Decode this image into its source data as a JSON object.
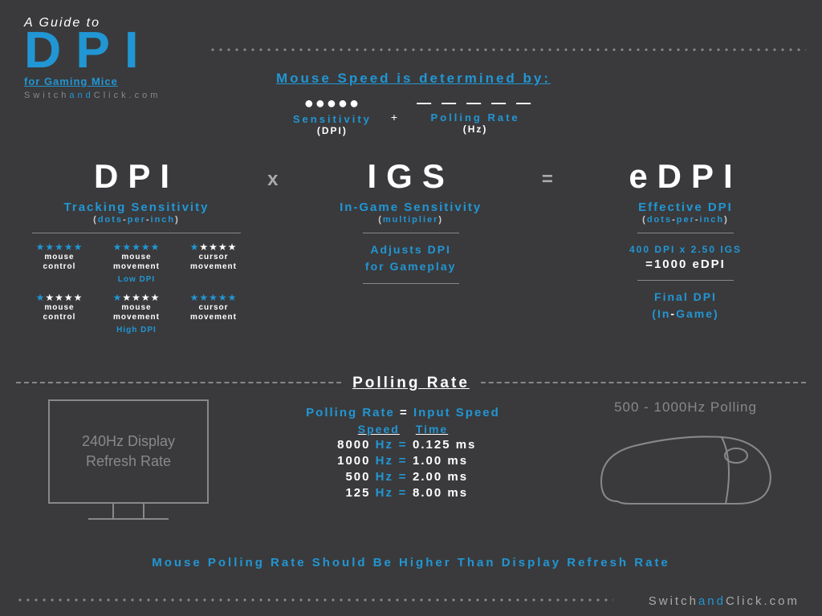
{
  "colors": {
    "background": "#3a3a3c",
    "accent": "#2196d4",
    "text": "#ffffff",
    "muted": "#888888",
    "light": "#aaaaaa"
  },
  "header": {
    "pretitle": "A Guide to",
    "title": "DPI",
    "subtitle": "for Gaming Mice",
    "site_prefix": "Switch",
    "site_mid": "and",
    "site_suffix": "Click.com"
  },
  "speed": {
    "heading": "Mouse Speed is determined by:",
    "factor1_label": "Sensitivity",
    "factor1_sub": "(DPI)",
    "plus": "+",
    "factor2_label": "Polling Rate",
    "factor2_sub": "(Hz)"
  },
  "formula": {
    "dpi": {
      "title": "DPI",
      "sub1": "Tracking Sensitivity",
      "sub2_open": "(",
      "sub2_d": "dots",
      "sub2_p": "per",
      "sub2_i": "inch",
      "sub2_close": ")",
      "grid": {
        "low_items": [
          {
            "stars_on": 5,
            "stars_off": 0,
            "label1": "mouse",
            "label2": "control"
          },
          {
            "stars_on": 5,
            "stars_off": 0,
            "label1": "mouse",
            "label2": "movement"
          },
          {
            "stars_on": 1,
            "stars_off": 4,
            "label1": "cursor",
            "label2": "movement"
          }
        ],
        "low_tier": "Low DPI",
        "high_items": [
          {
            "stars_on": 1,
            "stars_off": 4,
            "label1": "mouse",
            "label2": "control"
          },
          {
            "stars_on": 1,
            "stars_off": 4,
            "label1": "mouse",
            "label2": "movement"
          },
          {
            "stars_on": 5,
            "stars_off": 0,
            "label1": "cursor",
            "label2": "movement"
          }
        ],
        "high_tier": "High DPI"
      }
    },
    "op1": "x",
    "igs": {
      "title": "IGS",
      "sub1": "In-Game Sensitivity",
      "sub2_open": "(",
      "sub2_text": "multiplier",
      "sub2_close": ")",
      "desc1": "Adjusts DPI",
      "desc2": "for Gameplay"
    },
    "op2": "=",
    "edpi": {
      "title": "eDPI",
      "sub1": "Effective DPI",
      "sub2_open": "(",
      "sub2_d": "dots",
      "sub2_p": "per",
      "sub2_i": "inch",
      "sub2_close": ")",
      "calc_line": "400 DPI x 2.50 IGS",
      "result_eq": "=",
      "result_val": "1000 eDPI",
      "final1": "Final DPI",
      "final2_open": "(",
      "final2_in": "In",
      "final2_game": "Game",
      "final2_close": ")"
    }
  },
  "polling": {
    "section_label": "Polling Rate",
    "monitor_text1": "240Hz Display",
    "monitor_text2": "Refresh Rate",
    "equation_left": "Polling Rate",
    "equation_eq": " = ",
    "equation_right": "Input Speed",
    "head_speed": "Speed",
    "head_time": "Time",
    "rows": [
      {
        "hz": "8000",
        "ms": "0.125 ms"
      },
      {
        "hz": "1000",
        "ms": "1.00 ms"
      },
      {
        "hz": "500",
        "ms": "2.00 ms"
      },
      {
        "hz": "125",
        "ms": "8.00 ms"
      }
    ],
    "mouse_label": "500 - 1000Hz Polling"
  },
  "footer": {
    "message": "Mouse Polling Rate Should Be Higher Than Display Refresh Rate",
    "site_prefix": "Switch",
    "site_mid": "and",
    "site_suffix": "Click.com"
  }
}
